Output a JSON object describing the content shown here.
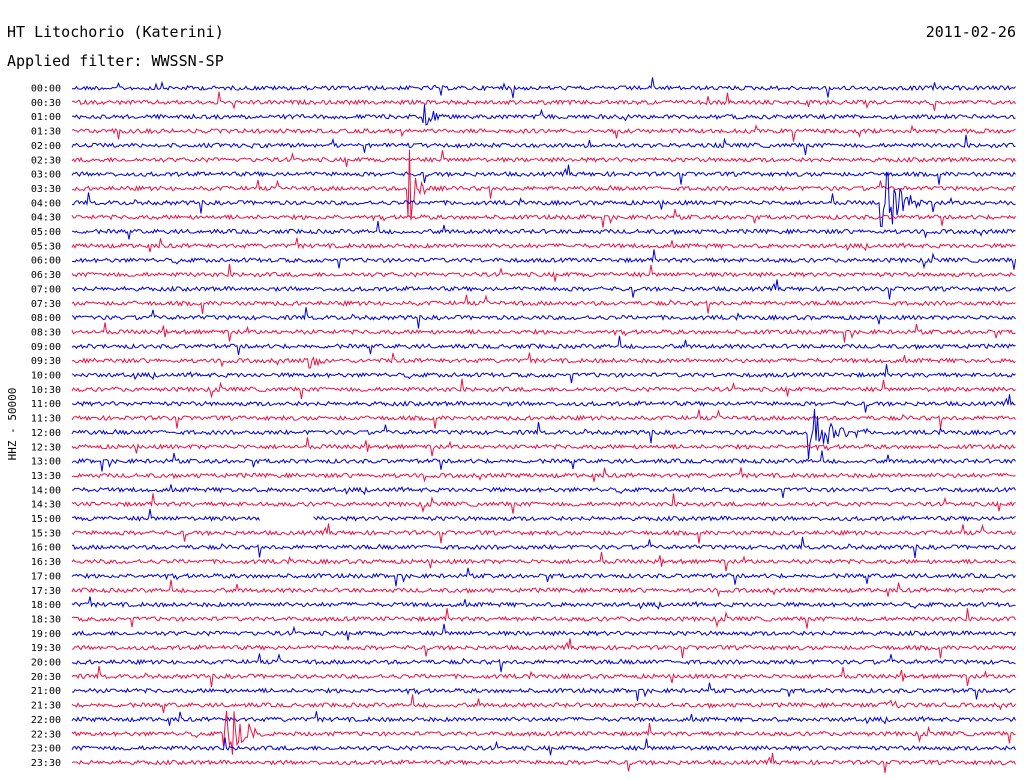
{
  "header": {
    "station": "HT Litochorio (Katerini)",
    "date": "2011-02-26",
    "filter": "Applied filter: WWSSN-SP"
  },
  "chart_data": {
    "type": "line",
    "title": "HT Litochorio (Katerini)",
    "subtitle": "Applied filter: WWSSN-SP",
    "date": "2011-02-26",
    "ylabel": "HHZ - 50000",
    "xlabel": "",
    "colors": [
      "#0000dd",
      "#ee1144"
    ],
    "row_labels": [
      "00:00",
      "00:30",
      "01:00",
      "01:30",
      "02:00",
      "02:30",
      "03:00",
      "03:30",
      "04:00",
      "04:30",
      "05:00",
      "05:30",
      "06:00",
      "06:30",
      "07:00",
      "07:30",
      "08:00",
      "08:30",
      "09:00",
      "09:30",
      "10:00",
      "10:30",
      "11:00",
      "11:30",
      "12:00",
      "12:30",
      "13:00",
      "13:30",
      "14:00",
      "14:30",
      "15:00",
      "15:30",
      "16:00",
      "16:30",
      "17:00",
      "17:30",
      "18:00",
      "18:30",
      "19:00",
      "19:30",
      "20:00",
      "20:30",
      "21:00",
      "21:30",
      "22:00",
      "22:30",
      "23:00",
      "23:30"
    ],
    "events": [
      {
        "row": 2,
        "x": 0.37,
        "amp": 1.4,
        "dur": 0.025
      },
      {
        "row": 7,
        "x": 0.355,
        "amp": 4.5,
        "dur": 0.02
      },
      {
        "row": 8,
        "x": 0.855,
        "amp": 3.5,
        "dur": 0.05
      },
      {
        "row": 19,
        "x": 0.25,
        "amp": 1.0,
        "dur": 0.02
      },
      {
        "row": 24,
        "x": 0.78,
        "amp": 2.2,
        "dur": 0.06
      },
      {
        "row": 43,
        "x": 0.86,
        "amp": 1.0,
        "dur": 0.03
      },
      {
        "row": 45,
        "x": 0.16,
        "amp": 3.0,
        "dur": 0.05
      }
    ],
    "gaps": [
      {
        "row": 30,
        "start": 0.2,
        "end": 0.255
      }
    ]
  }
}
